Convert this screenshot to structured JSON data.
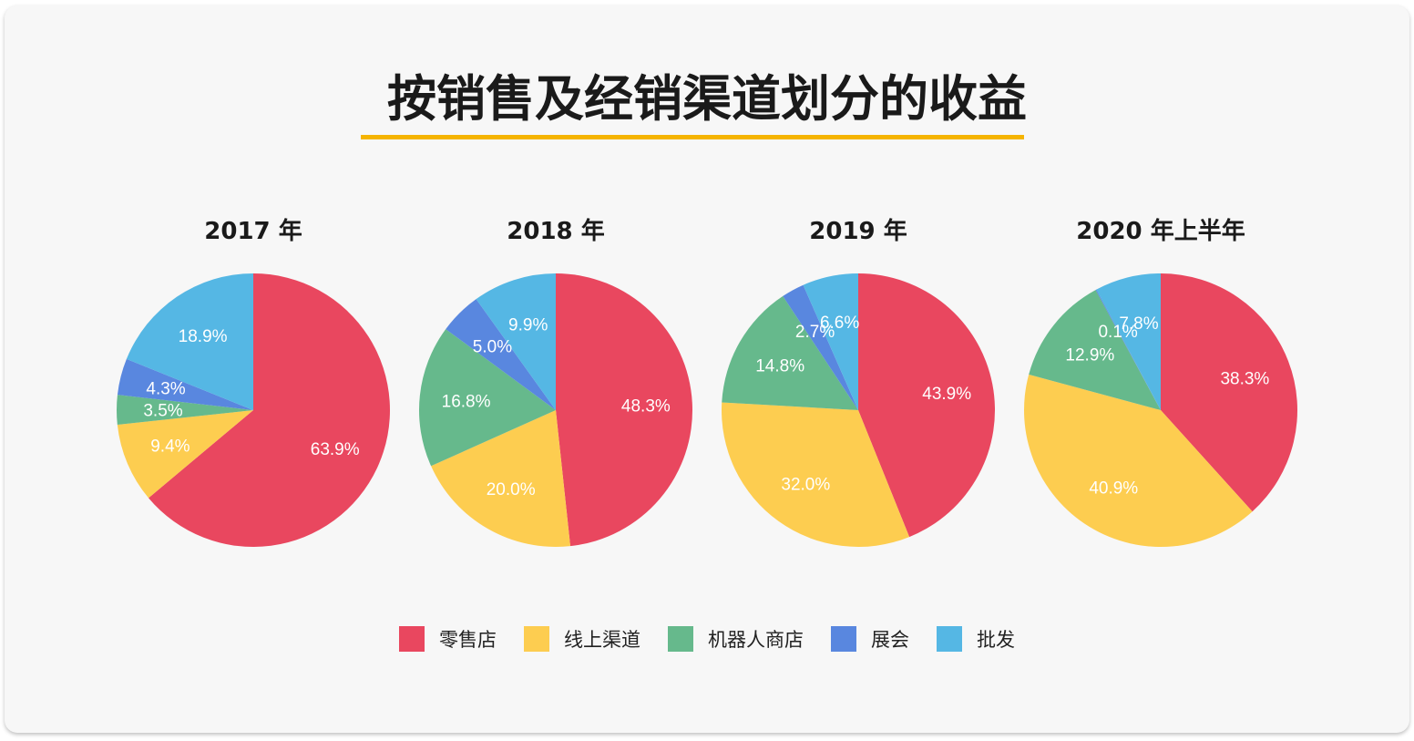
{
  "title": "按销售及经销渠道划分的收益",
  "chart_data": [
    {
      "type": "pie",
      "title": "2017 年",
      "categories": [
        "零售店",
        "线上渠道",
        "机器人商店",
        "展会",
        "批发"
      ],
      "values": [
        63.9,
        9.4,
        3.5,
        4.3,
        18.9
      ]
    },
    {
      "type": "pie",
      "title": "2018 年",
      "categories": [
        "零售店",
        "线上渠道",
        "机器人商店",
        "展会",
        "批发"
      ],
      "values": [
        48.3,
        20.0,
        16.8,
        5.0,
        9.9
      ]
    },
    {
      "type": "pie",
      "title": "2019 年",
      "categories": [
        "零售店",
        "线上渠道",
        "机器人商店",
        "展会",
        "批发"
      ],
      "values": [
        43.9,
        32.0,
        14.8,
        2.7,
        6.6
      ]
    },
    {
      "type": "pie",
      "title": "2020 年上半年",
      "categories": [
        "零售店",
        "线上渠道",
        "机器人商店",
        "展会",
        "批发"
      ],
      "values": [
        38.3,
        40.9,
        12.9,
        0.1,
        7.8
      ]
    }
  ],
  "legend": {
    "placement": "bottom",
    "items": [
      {
        "label": "零售店",
        "color": "#e9475f"
      },
      {
        "label": "线上渠道",
        "color": "#fdcd50"
      },
      {
        "label": "机器人商店",
        "color": "#66b98c"
      },
      {
        "label": "展会",
        "color": "#5987df"
      },
      {
        "label": "批发",
        "color": "#55b7e4"
      }
    ]
  }
}
